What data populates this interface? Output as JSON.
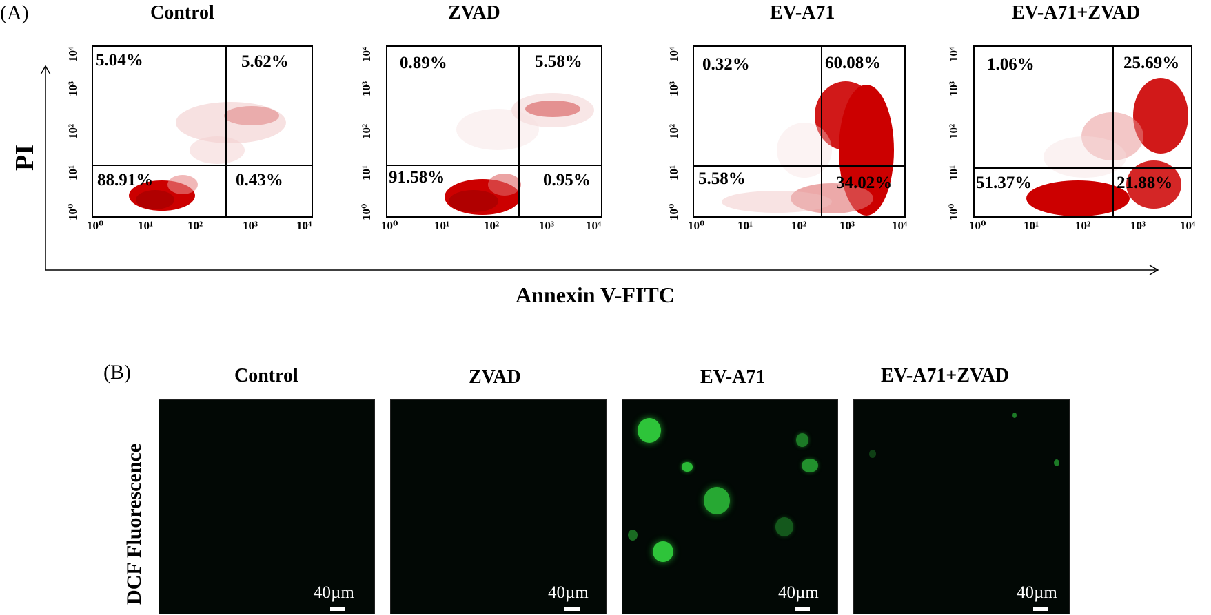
{
  "panel_a": {
    "letter": "(A)",
    "y_axis_label": "PI",
    "x_axis_label": "Annexin V-FITC",
    "x_tick_labels": [
      "10⁰",
      "10¹",
      "10²",
      "10³",
      "10⁴"
    ],
    "y_tick_labels": [
      "10⁰",
      "10¹",
      "10²",
      "10³",
      "10⁴"
    ],
    "plots": [
      {
        "title": "Control",
        "upper_left": "5.04%",
        "upper_right": "5.62%",
        "lower_left": "88.91%",
        "lower_right": "0.43%"
      },
      {
        "title": "ZVAD",
        "upper_left": "0.89%",
        "upper_right": "5.58%",
        "lower_left": "91.58%",
        "lower_right": "0.95%"
      },
      {
        "title": "EV-A71",
        "upper_left": "0.32%",
        "upper_right": "60.08%",
        "lower_left": "5.58%",
        "lower_right": "34.02%"
      },
      {
        "title": "EV-A71+ZVAD",
        "upper_left": "1.06%",
        "upper_right": "25.69%",
        "lower_left": "51.37%",
        "lower_right": "21.88%"
      }
    ]
  },
  "panel_b": {
    "letter": "(B)",
    "row_label": "DCF  Fluorescence",
    "scale_bar_text": "40µm",
    "images": [
      {
        "title": "Control"
      },
      {
        "title": "ZVAD"
      },
      {
        "title": "EV-A71"
      },
      {
        "title": "EV-A71+ZVAD"
      }
    ]
  },
  "colors": {
    "dot_dense": "#cc0000",
    "dot_sparse": "#3a0000",
    "fluorescence": "#2ec43a",
    "image_bg": "#020805"
  }
}
